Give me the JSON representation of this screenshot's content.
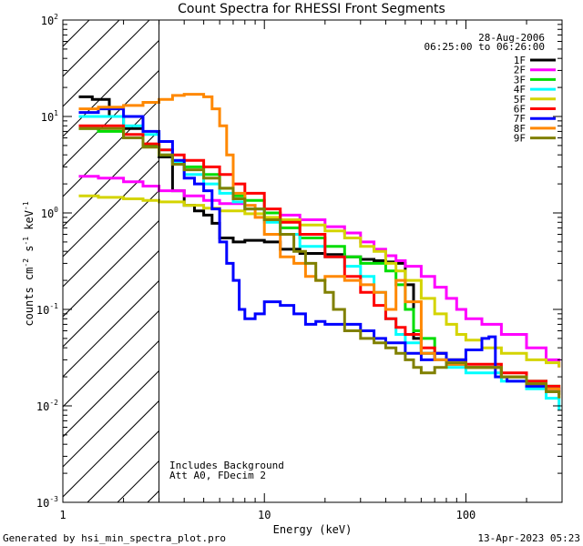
{
  "chart_data": {
    "type": "line",
    "title": "Count Spectra for RHESSI Front Segments",
    "xlabel": "Energy (keV)",
    "ylabel_parts": {
      "base": "counts cm",
      "exp1": "-2",
      "mid1": " s",
      "exp2": "-1",
      "mid2": " keV",
      "exp3": "-1"
    },
    "xscale": "log",
    "yscale": "log",
    "xlim": [
      1,
      300
    ],
    "ylim": [
      0.001,
      100
    ],
    "x_ticks": [
      {
        "value": 1,
        "label": "1"
      },
      {
        "value": 10,
        "label": "10"
      },
      {
        "value": 100,
        "label": "100"
      }
    ],
    "y_ticks": [
      {
        "value": 0.001,
        "base": "10",
        "exp": "-3"
      },
      {
        "value": 0.01,
        "base": "10",
        "exp": "-2"
      },
      {
        "value": 0.1,
        "base": "10",
        "exp": "-1"
      },
      {
        "value": 1,
        "base": "10",
        "exp": "0"
      },
      {
        "value": 10,
        "base": "10",
        "exp": "1"
      },
      {
        "value": 100,
        "base": "10",
        "exp": "2"
      }
    ],
    "shaded_region": {
      "x_from": 1,
      "x_to": 3,
      "pattern": "diagonal hatch"
    },
    "date": "28-Aug-2006",
    "time_range": "06:25:00 to 06:26:00",
    "annotations": [
      "Includes Background",
      "Att A0, FDecim 2"
    ],
    "legend_position": "top-right",
    "series": [
      {
        "name": "1F",
        "color": "#000000",
        "points": [
          [
            1.2,
            16
          ],
          [
            1.4,
            15
          ],
          [
            1.7,
            10
          ],
          [
            2.0,
            7.5
          ],
          [
            2.5,
            5
          ],
          [
            3,
            3.8
          ],
          [
            3.5,
            1.7
          ],
          [
            4,
            1.2
          ],
          [
            4.5,
            1.05
          ],
          [
            5,
            0.95
          ],
          [
            5.5,
            0.78
          ],
          [
            6,
            0.55
          ],
          [
            7,
            0.5
          ],
          [
            8,
            0.52
          ],
          [
            10,
            0.5
          ],
          [
            12,
            0.42
          ],
          [
            15,
            0.38
          ],
          [
            20,
            0.37
          ],
          [
            25,
            0.35
          ],
          [
            30,
            0.33
          ],
          [
            35,
            0.32
          ],
          [
            40,
            0.31
          ],
          [
            45,
            0.3
          ],
          [
            50,
            0.18
          ],
          [
            55,
            0.05
          ],
          [
            60,
            0.035
          ],
          [
            70,
            0.03
          ],
          [
            80,
            0.027
          ],
          [
            100,
            0.025
          ],
          [
            150,
            0.02
          ],
          [
            200,
            0.016
          ],
          [
            250,
            0.014
          ],
          [
            290,
            0.013
          ]
        ]
      },
      {
        "name": "2F",
        "color": "#ff00ff",
        "points": [
          [
            1.2,
            2.4
          ],
          [
            1.5,
            2.3
          ],
          [
            2,
            2.1
          ],
          [
            2.5,
            1.9
          ],
          [
            3,
            1.7
          ],
          [
            4,
            1.5
          ],
          [
            5,
            1.35
          ],
          [
            6,
            1.25
          ],
          [
            8,
            1.1
          ],
          [
            10,
            1.0
          ],
          [
            12,
            0.95
          ],
          [
            15,
            0.85
          ],
          [
            20,
            0.72
          ],
          [
            25,
            0.62
          ],
          [
            30,
            0.5
          ],
          [
            35,
            0.42
          ],
          [
            40,
            0.36
          ],
          [
            45,
            0.32
          ],
          [
            50,
            0.28
          ],
          [
            60,
            0.22
          ],
          [
            70,
            0.17
          ],
          [
            80,
            0.13
          ],
          [
            90,
            0.1
          ],
          [
            100,
            0.08
          ],
          [
            120,
            0.07
          ],
          [
            150,
            0.055
          ],
          [
            200,
            0.04
          ],
          [
            250,
            0.03
          ],
          [
            290,
            0.025
          ]
        ]
      },
      {
        "name": "3F",
        "color": "#00dd00",
        "points": [
          [
            1.2,
            7.5
          ],
          [
            1.5,
            7
          ],
          [
            2,
            6
          ],
          [
            2.5,
            5
          ],
          [
            3,
            4
          ],
          [
            3.5,
            3.4
          ],
          [
            4,
            3
          ],
          [
            5,
            2.5
          ],
          [
            6,
            1.8
          ],
          [
            7,
            1.5
          ],
          [
            8,
            1.35
          ],
          [
            10,
            1.0
          ],
          [
            12,
            0.7
          ],
          [
            15,
            0.55
          ],
          [
            20,
            0.45
          ],
          [
            25,
            0.35
          ],
          [
            30,
            0.3
          ],
          [
            35,
            0.3
          ],
          [
            40,
            0.25
          ],
          [
            45,
            0.18
          ],
          [
            50,
            0.1
          ],
          [
            55,
            0.06
          ],
          [
            60,
            0.05
          ],
          [
            70,
            0.035
          ],
          [
            80,
            0.03
          ],
          [
            100,
            0.025
          ],
          [
            150,
            0.02
          ],
          [
            200,
            0.018
          ],
          [
            250,
            0.016
          ],
          [
            290,
            0.015
          ]
        ]
      },
      {
        "name": "4F",
        "color": "#00ffff",
        "points": [
          [
            1.2,
            10
          ],
          [
            1.5,
            10
          ],
          [
            2,
            8
          ],
          [
            2.5,
            6.5
          ],
          [
            3,
            4.5
          ],
          [
            3.5,
            3.3
          ],
          [
            4,
            2.5
          ],
          [
            5,
            2.0
          ],
          [
            6,
            1.6
          ],
          [
            7,
            1.3
          ],
          [
            8,
            1.1
          ],
          [
            10,
            0.8
          ],
          [
            12,
            0.6
          ],
          [
            15,
            0.45
          ],
          [
            20,
            0.35
          ],
          [
            25,
            0.28
          ],
          [
            30,
            0.22
          ],
          [
            35,
            0.15
          ],
          [
            40,
            0.08
          ],
          [
            45,
            0.055
          ],
          [
            50,
            0.045
          ],
          [
            60,
            0.035
          ],
          [
            70,
            0.03
          ],
          [
            80,
            0.025
          ],
          [
            100,
            0.022
          ],
          [
            150,
            0.018
          ],
          [
            200,
            0.015
          ],
          [
            250,
            0.012
          ],
          [
            290,
            0.009
          ]
        ]
      },
      {
        "name": "5F",
        "color": "#d4d400",
        "points": [
          [
            1.2,
            1.5
          ],
          [
            1.5,
            1.45
          ],
          [
            2,
            1.4
          ],
          [
            2.5,
            1.35
          ],
          [
            3,
            1.3
          ],
          [
            4,
            1.2
          ],
          [
            5,
            1.12
          ],
          [
            6,
            1.05
          ],
          [
            8,
            0.98
          ],
          [
            10,
            0.9
          ],
          [
            12,
            0.85
          ],
          [
            15,
            0.75
          ],
          [
            20,
            0.65
          ],
          [
            25,
            0.55
          ],
          [
            30,
            0.45
          ],
          [
            35,
            0.4
          ],
          [
            40,
            0.3
          ],
          [
            45,
            0.25
          ],
          [
            50,
            0.2
          ],
          [
            60,
            0.13
          ],
          [
            70,
            0.09
          ],
          [
            80,
            0.07
          ],
          [
            90,
            0.055
          ],
          [
            100,
            0.048
          ],
          [
            120,
            0.04
          ],
          [
            150,
            0.035
          ],
          [
            200,
            0.03
          ],
          [
            250,
            0.028
          ],
          [
            290,
            0.025
          ]
        ]
      },
      {
        "name": "6F",
        "color": "#ff0000",
        "points": [
          [
            1.2,
            8
          ],
          [
            1.5,
            8
          ],
          [
            2,
            6.5
          ],
          [
            2.5,
            5.2
          ],
          [
            3,
            4.5
          ],
          [
            3.5,
            4
          ],
          [
            4,
            3.5
          ],
          [
            5,
            3.0
          ],
          [
            6,
            2.5
          ],
          [
            7,
            2.0
          ],
          [
            8,
            1.6
          ],
          [
            10,
            1.1
          ],
          [
            12,
            0.8
          ],
          [
            15,
            0.6
          ],
          [
            20,
            0.35
          ],
          [
            25,
            0.22
          ],
          [
            30,
            0.15
          ],
          [
            35,
            0.11
          ],
          [
            40,
            0.08
          ],
          [
            45,
            0.065
          ],
          [
            50,
            0.055
          ],
          [
            60,
            0.04
          ],
          [
            70,
            0.035
          ],
          [
            80,
            0.03
          ],
          [
            100,
            0.027
          ],
          [
            150,
            0.022
          ],
          [
            200,
            0.018
          ],
          [
            250,
            0.016
          ],
          [
            290,
            0.014
          ]
        ]
      },
      {
        "name": "7F",
        "color": "#0000ff",
        "points": [
          [
            1.2,
            11
          ],
          [
            1.5,
            12
          ],
          [
            2,
            10
          ],
          [
            2.5,
            7
          ],
          [
            3,
            5.5
          ],
          [
            3.5,
            3.5
          ],
          [
            4,
            2.3
          ],
          [
            4.5,
            2.0
          ],
          [
            5,
            1.7
          ],
          [
            5.5,
            1.1
          ],
          [
            6,
            0.5
          ],
          [
            6.5,
            0.3
          ],
          [
            7,
            0.2
          ],
          [
            7.5,
            0.1
          ],
          [
            8,
            0.08
          ],
          [
            9,
            0.09
          ],
          [
            10,
            0.12
          ],
          [
            12,
            0.11
          ],
          [
            14,
            0.09
          ],
          [
            16,
            0.07
          ],
          [
            18,
            0.075
          ],
          [
            20,
            0.07
          ],
          [
            25,
            0.07
          ],
          [
            30,
            0.06
          ],
          [
            35,
            0.05
          ],
          [
            40,
            0.045
          ],
          [
            50,
            0.035
          ],
          [
            60,
            0.03
          ],
          [
            70,
            0.035
          ],
          [
            80,
            0.03
          ],
          [
            100,
            0.038
          ],
          [
            120,
            0.05
          ],
          [
            130,
            0.052
          ],
          [
            140,
            0.02
          ],
          [
            160,
            0.018
          ],
          [
            200,
            0.016
          ],
          [
            250,
            0.015
          ],
          [
            290,
            0.014
          ]
        ]
      },
      {
        "name": "8F",
        "color": "#ff8800",
        "points": [
          [
            1.2,
            12
          ],
          [
            1.5,
            12.5
          ],
          [
            2,
            13
          ],
          [
            2.5,
            14
          ],
          [
            3,
            15
          ],
          [
            3.5,
            16.5
          ],
          [
            4,
            17
          ],
          [
            4.5,
            17
          ],
          [
            5,
            16
          ],
          [
            5.5,
            12
          ],
          [
            6,
            8
          ],
          [
            6.5,
            4
          ],
          [
            7,
            1.6
          ],
          [
            8,
            1.2
          ],
          [
            9,
            0.9
          ],
          [
            10,
            0.6
          ],
          [
            12,
            0.35
          ],
          [
            14,
            0.3
          ],
          [
            16,
            0.22
          ],
          [
            18,
            0.2
          ],
          [
            20,
            0.22
          ],
          [
            25,
            0.2
          ],
          [
            30,
            0.18
          ],
          [
            35,
            0.15
          ],
          [
            40,
            0.1
          ],
          [
            45,
            0.2
          ],
          [
            50,
            0.12
          ],
          [
            60,
            0.035
          ],
          [
            70,
            0.03
          ],
          [
            80,
            0.027
          ],
          [
            100,
            0.025
          ],
          [
            150,
            0.02
          ],
          [
            200,
            0.017
          ],
          [
            250,
            0.015
          ],
          [
            290,
            0.012
          ]
        ]
      },
      {
        "name": "9F",
        "color": "#808000",
        "points": [
          [
            1.2,
            7.5
          ],
          [
            1.5,
            7.5
          ],
          [
            2,
            6
          ],
          [
            2.5,
            4.8
          ],
          [
            3,
            4.0
          ],
          [
            3.5,
            3.2
          ],
          [
            4,
            2.8
          ],
          [
            5,
            2.3
          ],
          [
            6,
            1.8
          ],
          [
            7,
            1.4
          ],
          [
            8,
            1.1
          ],
          [
            10,
            0.85
          ],
          [
            12,
            0.6
          ],
          [
            14,
            0.4
          ],
          [
            16,
            0.3
          ],
          [
            18,
            0.2
          ],
          [
            20,
            0.15
          ],
          [
            22,
            0.1
          ],
          [
            25,
            0.06
          ],
          [
            30,
            0.05
          ],
          [
            35,
            0.045
          ],
          [
            40,
            0.04
          ],
          [
            45,
            0.035
          ],
          [
            50,
            0.03
          ],
          [
            55,
            0.025
          ],
          [
            60,
            0.022
          ],
          [
            70,
            0.025
          ],
          [
            80,
            0.028
          ],
          [
            100,
            0.025
          ],
          [
            150,
            0.02
          ],
          [
            200,
            0.017
          ],
          [
            250,
            0.014
          ],
          [
            290,
            0.012
          ]
        ]
      }
    ]
  },
  "footer": {
    "generated_by": "Generated by hsi_min_spectra_plot.pro",
    "timestamp": "13-Apr-2023 05:23"
  }
}
